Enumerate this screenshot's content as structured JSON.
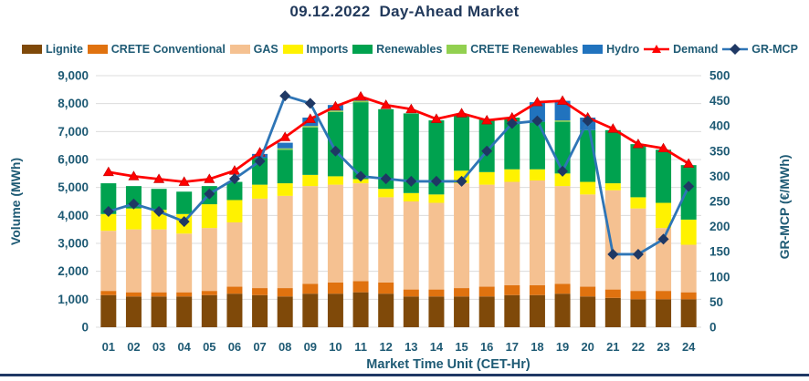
{
  "title": "09.12.2022  Day-Ahead Market",
  "colors": {
    "title_text": "#21395B",
    "axis_text": "#1E5A74",
    "gridline": "#DCDCDC",
    "bottom_border": "#1F3864",
    "lignite": "#7F4909",
    "crete_conventional": "#E0720F",
    "gas": "#F5C191",
    "imports": "#FFF200",
    "renewables": "#00A24F",
    "crete_renewables": "#92D050",
    "hydro": "#2173BE",
    "demand": "#FF0000",
    "gr_mcp_line": "#2E75B6",
    "gr_mcp_marker": "#1F3864"
  },
  "legend": [
    {
      "key": "lignite",
      "label": "Lignite",
      "glyph": "rect",
      "color": "#7F4909"
    },
    {
      "key": "crete_conventional",
      "label": "CRETE Conventional",
      "glyph": "rect",
      "color": "#E0720F"
    },
    {
      "key": "gas",
      "label": "GAS",
      "glyph": "rect",
      "color": "#F5C191"
    },
    {
      "key": "imports",
      "label": "Imports",
      "glyph": "rect",
      "color": "#FFF200"
    },
    {
      "key": "renewables",
      "label": "Renewables",
      "glyph": "rect",
      "color": "#00A24F"
    },
    {
      "key": "crete_renewables",
      "label": "CRETE Renewables",
      "glyph": "rect",
      "color": "#92D050"
    },
    {
      "key": "hydro",
      "label": "Hydro",
      "glyph": "rect",
      "color": "#2173BE"
    },
    {
      "key": "demand",
      "label": "Demand",
      "glyph": "line-triangle",
      "color": "#FF0000"
    },
    {
      "key": "gr_mcp",
      "label": "GR-MCP",
      "glyph": "line-diamond",
      "color": "#2E75B6",
      "marker_color": "#1F3864"
    }
  ],
  "axes": {
    "left_title": "Volume (MWh)",
    "right_title": "GR-MCP (€/MWh)",
    "x_title": "Market Time Unit (CET-Hr)"
  },
  "chart_data": {
    "type": "bar",
    "stacked": true,
    "grid": "horizontal",
    "legend_position": "top",
    "title": "09.12.2022  Day-Ahead Market",
    "categories": [
      "01",
      "02",
      "03",
      "04",
      "05",
      "06",
      "07",
      "08",
      "09",
      "10",
      "11",
      "12",
      "13",
      "14",
      "15",
      "16",
      "17",
      "18",
      "19",
      "20",
      "21",
      "22",
      "23",
      "24"
    ],
    "x_label": "Market Time Unit (CET-Hr)",
    "y_left": {
      "label": "Volume (MWh)",
      "min": 0,
      "max": 9000,
      "step": 1000,
      "tick_labels": [
        "0",
        "1,000",
        "2,000",
        "3,000",
        "4,000",
        "5,000",
        "6,000",
        "7,000",
        "8,000",
        "9,000"
      ]
    },
    "y_right": {
      "label": "GR-MCP (€/MWh)",
      "min": 0,
      "max": 500,
      "step": 50,
      "tick_labels": [
        "0",
        "50",
        "100",
        "150",
        "200",
        "250",
        "300",
        "350",
        "400",
        "450",
        "500"
      ]
    },
    "series": [
      {
        "name": "Lignite",
        "color": "#7F4909",
        "values": [
          1150,
          1100,
          1100,
          1100,
          1150,
          1200,
          1150,
          1100,
          1200,
          1200,
          1250,
          1200,
          1100,
          1100,
          1100,
          1100,
          1150,
          1150,
          1200,
          1100,
          1050,
          1000,
          1000,
          1000
        ]
      },
      {
        "name": "CRETE Conventional",
        "color": "#E0720F",
        "values": [
          150,
          150,
          150,
          150,
          150,
          250,
          250,
          300,
          350,
          400,
          400,
          400,
          250,
          250,
          300,
          350,
          350,
          350,
          350,
          350,
          300,
          300,
          300,
          250
        ]
      },
      {
        "name": "GAS",
        "color": "#F5C191",
        "values": [
          2150,
          2250,
          2250,
          2100,
          2250,
          2300,
          3200,
          3300,
          3500,
          3500,
          3500,
          3050,
          3150,
          3100,
          3750,
          3650,
          3700,
          3750,
          3500,
          3300,
          3550,
          2950,
          2250,
          1700
        ]
      },
      {
        "name": "Imports",
        "color": "#FFF200",
        "values": [
          600,
          750,
          700,
          700,
          850,
          800,
          500,
          450,
          400,
          300,
          150,
          300,
          300,
          300,
          450,
          450,
          450,
          400,
          450,
          450,
          250,
          400,
          900,
          900
        ]
      },
      {
        "name": "Renewables",
        "color": "#00A24F",
        "values": [
          1100,
          800,
          750,
          800,
          650,
          650,
          950,
          1200,
          1700,
          2300,
          2750,
          2850,
          2850,
          2650,
          2000,
          1900,
          1850,
          1700,
          1850,
          1850,
          1900,
          1900,
          1900,
          1950
        ]
      },
      {
        "name": "CRETE Renewables",
        "color": "#92D050",
        "values": [
          0,
          0,
          0,
          0,
          0,
          0,
          0,
          50,
          50,
          50,
          50,
          0,
          0,
          0,
          0,
          0,
          0,
          0,
          50,
          0,
          0,
          0,
          0,
          0
        ]
      },
      {
        "name": "Hydro",
        "color": "#2173BE",
        "values": [
          0,
          0,
          0,
          0,
          0,
          0,
          150,
          200,
          300,
          200,
          100,
          0,
          0,
          0,
          0,
          0,
          0,
          700,
          700,
          450,
          0,
          0,
          0,
          0
        ]
      }
    ],
    "lines": [
      {
        "name": "Demand",
        "axis": "left",
        "color": "#FF0000",
        "marker": "triangle",
        "marker_color": "#FF0000",
        "values": [
          5550,
          5400,
          5300,
          5200,
          5300,
          5600,
          6250,
          6800,
          7450,
          7900,
          8250,
          7950,
          7800,
          7450,
          7650,
          7400,
          7500,
          8050,
          8100,
          7500,
          7100,
          6550,
          6400,
          5850
        ]
      },
      {
        "name": "GR-MCP",
        "axis": "right",
        "color": "#2E75B6",
        "marker": "diamond",
        "marker_color": "#1F3864",
        "values": [
          230,
          245,
          230,
          210,
          265,
          295,
          330,
          460,
          445,
          350,
          300,
          295,
          290,
          290,
          290,
          350,
          405,
          410,
          310,
          410,
          145,
          145,
          175,
          280
        ]
      }
    ]
  }
}
